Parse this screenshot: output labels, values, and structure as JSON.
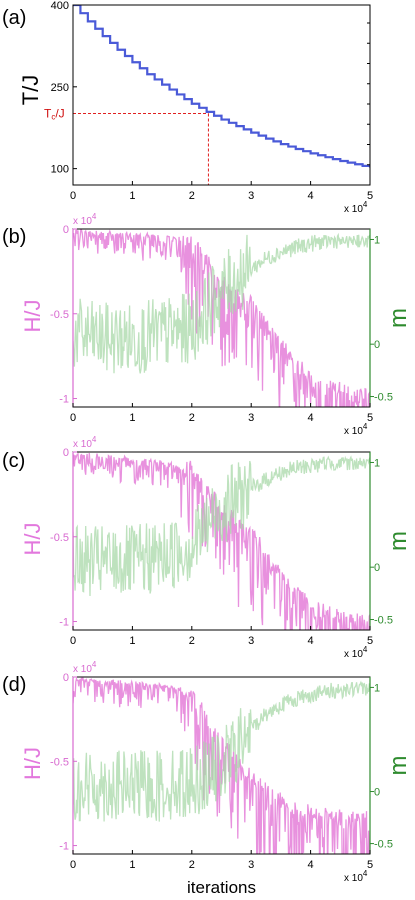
{
  "chart_data": [
    {
      "panel": "(a)",
      "type": "line",
      "ylabel": "T/J",
      "x_multiplier": "x 10",
      "x_multiplier_exp": "4",
      "xlim": [
        0,
        50000
      ],
      "ylim": [
        70,
        400
      ],
      "x_ticks": [
        "0",
        "1",
        "2",
        "3",
        "4",
        "5"
      ],
      "y_ticks": [
        {
          "label": "400",
          "value": 400
        },
        {
          "label": "250",
          "value": 250
        },
        {
          "label": "100",
          "value": 100
        }
      ],
      "annotation": {
        "label_main": "T",
        "label_sub": "c",
        "label_tail": "/J",
        "x": 22800,
        "y": 201
      },
      "series": [
        {
          "color": "#4a5ad8",
          "x": [
            0,
            2500,
            5000,
            7500,
            10000,
            12500,
            15000,
            17500,
            20000,
            22500,
            25000,
            27500,
            30000,
            32500,
            35000,
            37500,
            40000,
            42500,
            45000,
            47500,
            50000
          ],
          "y": [
            400,
            370,
            343,
            318,
            295,
            273,
            254,
            236,
            219,
            204,
            190,
            178,
            166,
            155,
            145,
            136,
            128,
            121,
            114,
            108,
            102
          ]
        }
      ]
    },
    {
      "panel": "(b)",
      "type": "line",
      "ylabel_left": "H/J",
      "ylabel_right": "m",
      "x_multiplier": "x 10",
      "x_multiplier_exp": "4",
      "y_multiplier": "x 10",
      "y_multiplier_exp": "4",
      "xlim": [
        0,
        50000
      ],
      "ylim_left": [
        -10500,
        0
      ],
      "ylim_right": [
        -0.6,
        1.1
      ],
      "x_ticks": [
        "0",
        "1",
        "2",
        "3",
        "4",
        "5"
      ],
      "y_ticks_left": [
        {
          "label": "0",
          "value": 0
        },
        {
          "label": "-0.5",
          "value": -5000
        },
        {
          "label": "-1",
          "value": -10000
        }
      ],
      "y_ticks_right": [
        {
          "label": "1",
          "value": 1
        },
        {
          "label": "0",
          "value": 0
        },
        {
          "label": "-0.5",
          "value": -0.5
        }
      ],
      "series": [
        {
          "color": "#e585da",
          "x": [
            0,
            5000,
            10000,
            15000,
            20000,
            22000,
            24000,
            26000,
            28000,
            30000,
            32000,
            34000,
            36000,
            38000,
            40000,
            42000,
            44000,
            46000,
            48000,
            50000
          ],
          "y": [
            -100,
            -200,
            -300,
            -400,
            -500,
            -1500,
            -2500,
            -3300,
            -3800,
            -4200,
            -5200,
            -6200,
            -7000,
            -7800,
            -8500,
            -9000,
            -9200,
            -9500,
            -9700,
            -9800
          ]
        },
        {
          "color": "#a8d8a8",
          "x": [
            0,
            5000,
            10000,
            15000,
            20000,
            22000,
            24000,
            26000,
            28000,
            30000,
            32000,
            34000,
            36000,
            38000,
            40000,
            42000,
            44000,
            46000,
            48000,
            50000
          ],
          "y": [
            0.1,
            0.05,
            0.05,
            0.1,
            0.15,
            0.3,
            0.45,
            0.55,
            0.65,
            0.72,
            0.8,
            0.86,
            0.9,
            0.93,
            0.96,
            0.98,
            0.99,
            1.0,
            1.0,
            1.0
          ]
        }
      ]
    },
    {
      "panel": "(c)",
      "type": "line",
      "ylabel_left": "H/J",
      "ylabel_right": "m",
      "x_multiplier": "x 10",
      "x_multiplier_exp": "4",
      "y_multiplier": "x 10",
      "y_multiplier_exp": "4",
      "xlim": [
        0,
        50000
      ],
      "ylim_left": [
        -10500,
        0
      ],
      "ylim_right": [
        -0.6,
        1.1
      ],
      "x_ticks": [
        "0",
        "1",
        "2",
        "3",
        "4",
        "5"
      ],
      "y_ticks_left": [
        {
          "label": "0",
          "value": 0
        },
        {
          "label": "-0.5",
          "value": -5000
        },
        {
          "label": "-1",
          "value": -10000
        }
      ],
      "y_ticks_right": [
        {
          "label": "1",
          "value": 1
        },
        {
          "label": "0",
          "value": 0
        },
        {
          "label": "-0.5",
          "value": -0.5
        }
      ],
      "series": [
        {
          "color": "#e585da",
          "x": [
            0,
            5000,
            10000,
            15000,
            20000,
            22000,
            24000,
            26000,
            28000,
            30000,
            32000,
            34000,
            36000,
            38000,
            40000,
            42000,
            44000,
            46000,
            48000,
            50000
          ],
          "y": [
            -100,
            -200,
            -400,
            -600,
            -900,
            -1800,
            -2800,
            -3500,
            -4000,
            -4600,
            -5600,
            -6600,
            -7500,
            -8200,
            -8800,
            -9200,
            -9500,
            -9700,
            -9800,
            -9900
          ]
        },
        {
          "color": "#a8d8a8",
          "x": [
            0,
            5000,
            10000,
            15000,
            20000,
            22000,
            24000,
            26000,
            28000,
            30000,
            32000,
            34000,
            36000,
            38000,
            40000,
            42000,
            44000,
            46000,
            48000,
            50000
          ],
          "y": [
            0.05,
            0.05,
            0.05,
            0.1,
            0.2,
            0.35,
            0.5,
            0.6,
            0.68,
            0.75,
            0.82,
            0.88,
            0.92,
            0.95,
            0.97,
            0.99,
            1.0,
            1.0,
            1.0,
            1.0
          ]
        }
      ]
    },
    {
      "panel": "(d)",
      "type": "line",
      "ylabel_left": "H/J",
      "ylabel_right": "m",
      "xlabel": "iterations",
      "x_multiplier": "x 10",
      "x_multiplier_exp": "4",
      "y_multiplier": "x 10",
      "y_multiplier_exp": "4",
      "xlim": [
        0,
        50000
      ],
      "ylim_left": [
        -10500,
        0
      ],
      "ylim_right": [
        -0.6,
        1.1
      ],
      "x_ticks": [
        "0",
        "1",
        "2",
        "3",
        "4",
        "5"
      ],
      "y_ticks_left": [
        {
          "label": "0",
          "value": 0
        },
        {
          "label": "-0.5",
          "value": -5000
        },
        {
          "label": "-1",
          "value": -10000
        }
      ],
      "y_ticks_right": [
        {
          "label": "1",
          "value": 1
        },
        {
          "label": "0",
          "value": 0
        },
        {
          "label": "-0.5",
          "value": -0.5
        }
      ],
      "series": [
        {
          "color": "#e585da",
          "x": [
            0,
            5000,
            10000,
            15000,
            20000,
            22000,
            24000,
            26000,
            28000,
            30000,
            32000,
            34000,
            36000,
            38000,
            40000,
            42000,
            44000,
            46000,
            48000,
            50000
          ],
          "y": [
            -100,
            -200,
            -300,
            -500,
            -900,
            -2000,
            -3200,
            -4200,
            -5000,
            -5800,
            -6500,
            -7000,
            -7400,
            -7700,
            -7900,
            -8000,
            -8100,
            -8200,
            -8200,
            -8300
          ]
        },
        {
          "color": "#a8d8a8",
          "x": [
            0,
            5000,
            10000,
            15000,
            20000,
            22000,
            24000,
            26000,
            28000,
            30000,
            32000,
            34000,
            36000,
            38000,
            40000,
            42000,
            44000,
            46000,
            48000,
            50000
          ],
          "y": [
            0.05,
            0.05,
            0.05,
            0.05,
            0.1,
            0.15,
            0.2,
            0.3,
            0.45,
            0.6,
            0.72,
            0.8,
            0.86,
            0.9,
            0.93,
            0.95,
            0.97,
            0.98,
            1.0,
            1.0
          ]
        }
      ]
    }
  ]
}
